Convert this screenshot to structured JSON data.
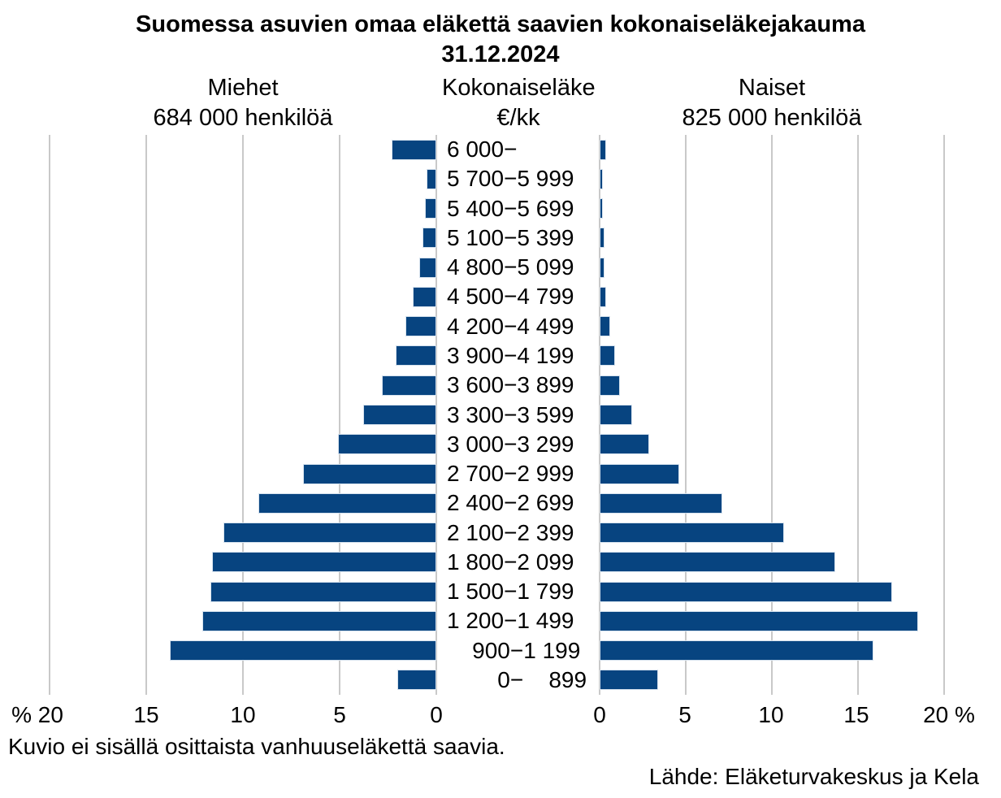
{
  "title": {
    "line1": "Suomessa asuvien omaa eläkettä saavien kokonaiseläkejakauma",
    "line2": "31.12.2024"
  },
  "headers": {
    "left": {
      "line1": "Miehet",
      "line2": "684 000 henkilöä"
    },
    "center": {
      "line1": "Kokonaiseläke",
      "line2": "€/kk"
    },
    "right": {
      "line1": "Naiset",
      "line2": "825 000 henkilöä"
    }
  },
  "axis": {
    "left_ticks": [
      "% 20",
      "15",
      "10",
      "5",
      "0"
    ],
    "right_ticks": [
      "0",
      "5",
      "10",
      "15",
      "20 %"
    ]
  },
  "category_display": [
    "6 000−",
    "5 700−5 999",
    "5 400−5 699",
    "5 100−5 399",
    "4 800−5 099",
    "4 500−4 799",
    "4 200−4 499",
    "3 900−4 199",
    "3 600−3 899",
    "3 300−3 599",
    "3 000−3 299",
    "2 700−2 999",
    "2 400−2 699",
    "2 100−2 399",
    "1 800−2 099",
    "1 500−1 799",
    "1 200−1 499",
    "  900−1 199",
    "    0−  899"
  ],
  "chart_data": {
    "type": "bar",
    "variant": "population-pyramid",
    "title": "Suomessa asuvien omaa eläkettä saavien kokonaiseläkejakauma 31.12.2024",
    "categories_axis_label": "Kokonaiseläke €/kk",
    "unit": "%",
    "xlim": [
      0,
      20
    ],
    "x_ticks": [
      0,
      5,
      10,
      15,
      20
    ],
    "grid": true,
    "categories": [
      "6 000−",
      "5 700−5 999",
      "5 400−5 699",
      "5 100−5 399",
      "4 800−5 099",
      "4 500−4 799",
      "4 200−4 499",
      "3 900−4 199",
      "3 600−3 899",
      "3 300−3 599",
      "3 000−3 299",
      "2 700−2 999",
      "2 400−2 699",
      "2 100−2 399",
      "1 800−2 099",
      "1 500−1 799",
      "1 200−1 499",
      "900−1 199",
      "0−899"
    ],
    "series": [
      {
        "name": "Miehet",
        "total_label": "684 000 henkilöä",
        "side": "left",
        "values": [
          2.3,
          0.5,
          0.6,
          0.7,
          0.9,
          1.2,
          1.6,
          2.1,
          2.8,
          3.8,
          5.1,
          6.9,
          9.2,
          11.0,
          11.6,
          11.7,
          12.1,
          13.8,
          2.0
        ]
      },
      {
        "name": "Naiset",
        "total_label": "825 000 henkilöä",
        "side": "right",
        "values": [
          0.4,
          0.2,
          0.2,
          0.3,
          0.3,
          0.4,
          0.6,
          0.9,
          1.2,
          1.9,
          2.9,
          4.6,
          7.1,
          10.7,
          13.7,
          17.0,
          18.5,
          15.9,
          3.4
        ]
      }
    ]
  },
  "footnote": "Kuvio ei sisällä osittaista vanhuuseläkettä saavia.",
  "source": "Lähde: Eläketurvakeskus ja Kela",
  "colors": {
    "bar": "#074480",
    "bar_border": "#D6E2EE",
    "grid": "#C9C9C9",
    "text": "#000000"
  }
}
